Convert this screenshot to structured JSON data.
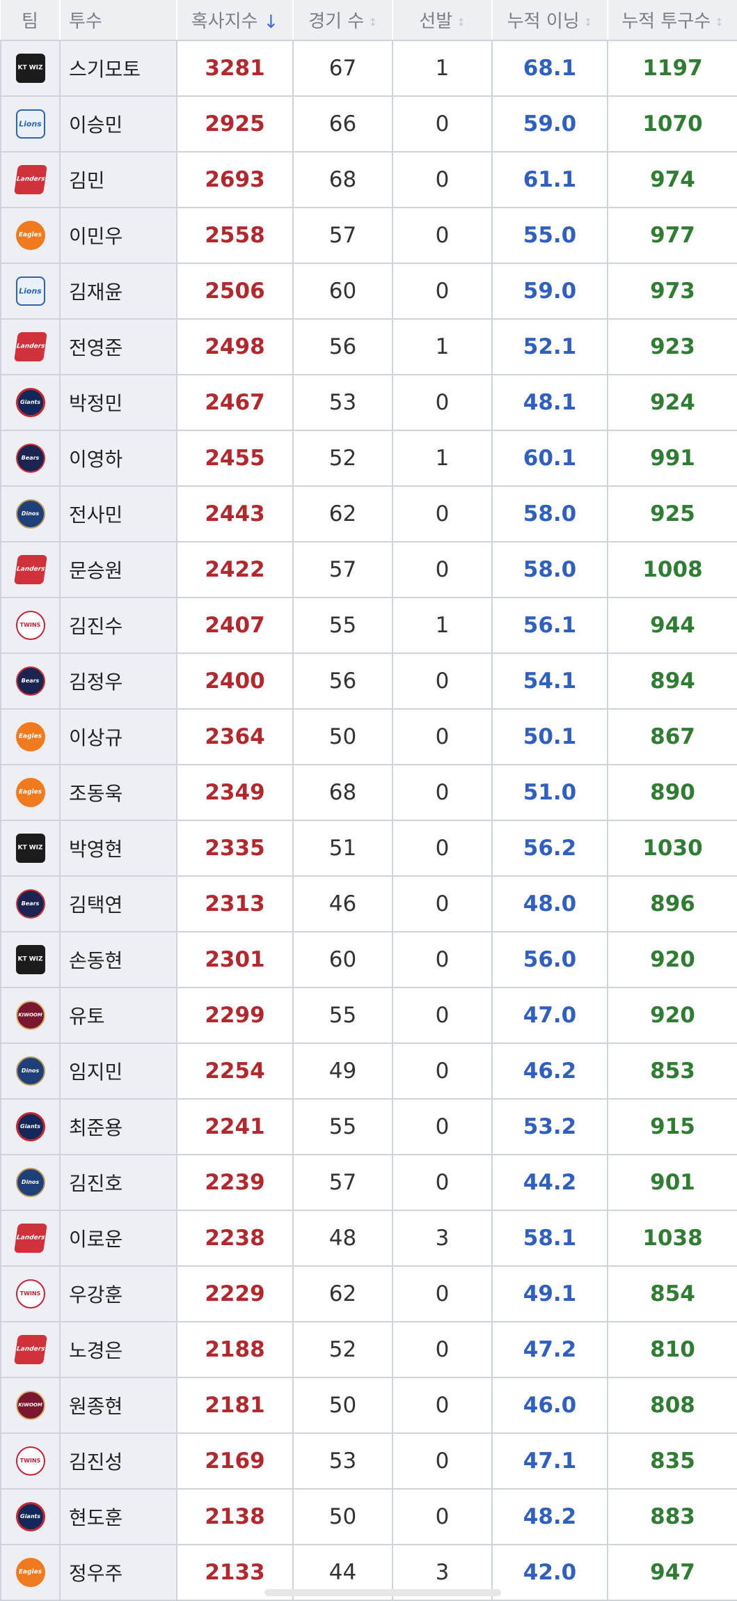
{
  "header": {
    "team": "팀",
    "pitcher": "투수",
    "holds_index": "혹사지수",
    "games": "경기 수",
    "starts": "선발",
    "innings": "누적 이닝",
    "pitches": "누적 투구수",
    "sort_active_icon": "↓",
    "sort_inactive_icon": "↕"
  },
  "team_logos": {
    "ktwiz": "KT WIZ",
    "lions": "Lions",
    "landers": "Landers",
    "eagles": "Eagles",
    "giants": "Giants",
    "bears": "Bears",
    "dinos": "Dinos",
    "twins": "TWINS",
    "kiwoom": "KIWOOM"
  },
  "colors": {
    "index_red": "#b3282d",
    "innings_blue": "#2f5fc0",
    "pitches_green": "#2f7d32",
    "header_bg": "#edeff2"
  },
  "rows": [
    {
      "team": "ktwiz",
      "name": "스기모토",
      "index": "3281",
      "games": "67",
      "starts": "1",
      "innings": "68.1",
      "pitches": "1197"
    },
    {
      "team": "lions",
      "name": "이승민",
      "index": "2925",
      "games": "66",
      "starts": "0",
      "innings": "59.0",
      "pitches": "1070"
    },
    {
      "team": "landers",
      "name": "김민",
      "index": "2693",
      "games": "68",
      "starts": "0",
      "innings": "61.1",
      "pitches": "974"
    },
    {
      "team": "eagles",
      "name": "이민우",
      "index": "2558",
      "games": "57",
      "starts": "0",
      "innings": "55.0",
      "pitches": "977"
    },
    {
      "team": "lions",
      "name": "김재윤",
      "index": "2506",
      "games": "60",
      "starts": "0",
      "innings": "59.0",
      "pitches": "973"
    },
    {
      "team": "landers",
      "name": "전영준",
      "index": "2498",
      "games": "56",
      "starts": "1",
      "innings": "52.1",
      "pitches": "923"
    },
    {
      "team": "giants",
      "name": "박정민",
      "index": "2467",
      "games": "53",
      "starts": "0",
      "innings": "48.1",
      "pitches": "924"
    },
    {
      "team": "bears",
      "name": "이영하",
      "index": "2455",
      "games": "52",
      "starts": "1",
      "innings": "60.1",
      "pitches": "991"
    },
    {
      "team": "dinos",
      "name": "전사민",
      "index": "2443",
      "games": "62",
      "starts": "0",
      "innings": "58.0",
      "pitches": "925"
    },
    {
      "team": "landers",
      "name": "문승원",
      "index": "2422",
      "games": "57",
      "starts": "0",
      "innings": "58.0",
      "pitches": "1008"
    },
    {
      "team": "twins",
      "name": "김진수",
      "index": "2407",
      "games": "55",
      "starts": "1",
      "innings": "56.1",
      "pitches": "944"
    },
    {
      "team": "bears",
      "name": "김정우",
      "index": "2400",
      "games": "56",
      "starts": "0",
      "innings": "54.1",
      "pitches": "894"
    },
    {
      "team": "eagles",
      "name": "이상규",
      "index": "2364",
      "games": "50",
      "starts": "0",
      "innings": "50.1",
      "pitches": "867"
    },
    {
      "team": "eagles",
      "name": "조동욱",
      "index": "2349",
      "games": "68",
      "starts": "0",
      "innings": "51.0",
      "pitches": "890"
    },
    {
      "team": "ktwiz",
      "name": "박영현",
      "index": "2335",
      "games": "51",
      "starts": "0",
      "innings": "56.2",
      "pitches": "1030"
    },
    {
      "team": "bears",
      "name": "김택연",
      "index": "2313",
      "games": "46",
      "starts": "0",
      "innings": "48.0",
      "pitches": "896"
    },
    {
      "team": "ktwiz",
      "name": "손동현",
      "index": "2301",
      "games": "60",
      "starts": "0",
      "innings": "56.0",
      "pitches": "920"
    },
    {
      "team": "kiwoom",
      "name": "유토",
      "index": "2299",
      "games": "55",
      "starts": "0",
      "innings": "47.0",
      "pitches": "920"
    },
    {
      "team": "dinos",
      "name": "임지민",
      "index": "2254",
      "games": "49",
      "starts": "0",
      "innings": "46.2",
      "pitches": "853"
    },
    {
      "team": "giants",
      "name": "최준용",
      "index": "2241",
      "games": "55",
      "starts": "0",
      "innings": "53.2",
      "pitches": "915"
    },
    {
      "team": "dinos",
      "name": "김진호",
      "index": "2239",
      "games": "57",
      "starts": "0",
      "innings": "44.2",
      "pitches": "901"
    },
    {
      "team": "landers",
      "name": "이로운",
      "index": "2238",
      "games": "48",
      "starts": "3",
      "innings": "58.1",
      "pitches": "1038"
    },
    {
      "team": "twins",
      "name": "우강훈",
      "index": "2229",
      "games": "62",
      "starts": "0",
      "innings": "49.1",
      "pitches": "854"
    },
    {
      "team": "landers",
      "name": "노경은",
      "index": "2188",
      "games": "52",
      "starts": "0",
      "innings": "47.2",
      "pitches": "810"
    },
    {
      "team": "kiwoom",
      "name": "원종현",
      "index": "2181",
      "games": "50",
      "starts": "0",
      "innings": "46.0",
      "pitches": "808"
    },
    {
      "team": "twins",
      "name": "김진성",
      "index": "2169",
      "games": "53",
      "starts": "0",
      "innings": "47.1",
      "pitches": "835"
    },
    {
      "team": "giants",
      "name": "현도훈",
      "index": "2138",
      "games": "50",
      "starts": "0",
      "innings": "48.2",
      "pitches": "883"
    },
    {
      "team": "eagles",
      "name": "정우주",
      "index": "2133",
      "games": "44",
      "starts": "3",
      "innings": "42.0",
      "pitches": "947"
    }
  ]
}
